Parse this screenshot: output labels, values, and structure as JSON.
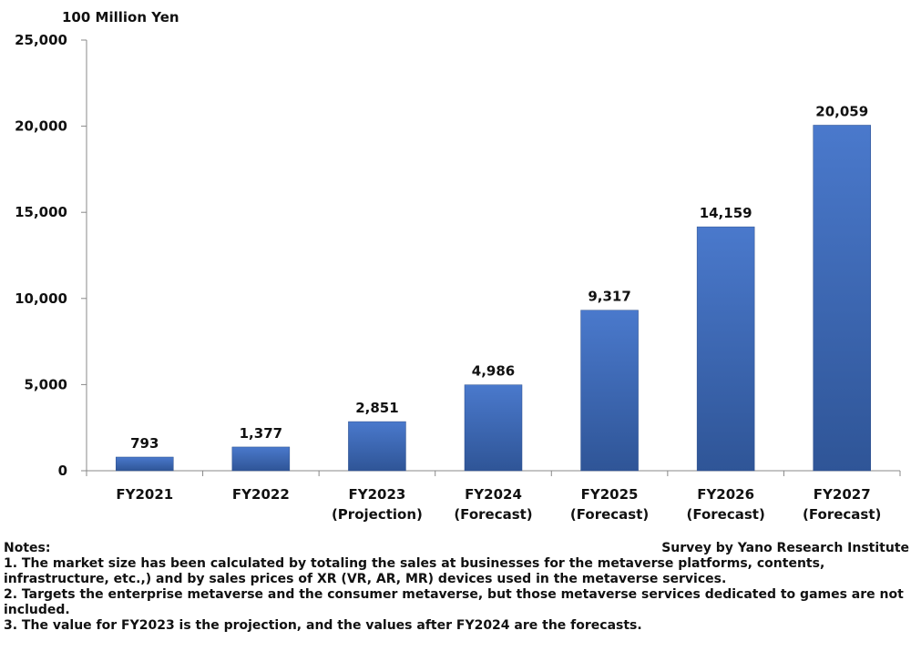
{
  "chart_data": {
    "type": "bar",
    "unit_label": "100 Million Yen",
    "categories": [
      [
        "FY2021"
      ],
      [
        "FY2022"
      ],
      [
        "FY2023",
        "(Projection)"
      ],
      [
        "FY2024",
        "(Forecast)"
      ],
      [
        "FY2025",
        "(Forecast)"
      ],
      [
        "FY2026",
        "(Forecast)"
      ],
      [
        "FY2027",
        "(Forecast)"
      ]
    ],
    "values": [
      793,
      1377,
      2851,
      4986,
      9317,
      14159,
      20059
    ],
    "value_labels": [
      "793",
      "1,377",
      "2,851",
      "4,986",
      "9,317",
      "14,159",
      "20,059"
    ],
    "ylim": [
      0,
      25000
    ],
    "yticks": [
      0,
      5000,
      10000,
      15000,
      20000,
      25000
    ],
    "ytick_labels": [
      "0",
      "5,000",
      "10,000",
      "15,000",
      "20,000",
      "25,000"
    ],
    "grid": false,
    "bar_color_top": "#4a79cc",
    "bar_color_bottom": "#2f5597"
  },
  "notes": {
    "title": "Notes:",
    "source": "Survey by Yano Research Institute",
    "items": [
      "1. The market size has been calculated by totaling the sales at businesses for the metaverse platforms, contents, infrastructure, etc.,) and by sales prices of XR (VR, AR, MR) devices used in the metaverse services.",
      "2. Targets the enterprise metaverse and the consumer metaverse, but those metaverse services dedicated to games are not included.",
      "3. The value for FY2023 is the projection, and the values after FY2024 are the forecasts."
    ]
  }
}
